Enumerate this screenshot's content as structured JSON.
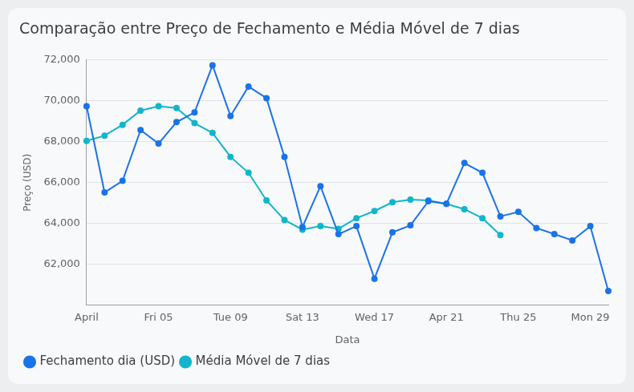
{
  "chart_data": {
    "type": "line",
    "title": "Comparação entre Preço de Fechamento e Média Móvel de 7 dias",
    "x_label": "Data",
    "y_label": "Preço (USD)",
    "categories": [
      "April",
      null,
      null,
      null,
      "Fri 05",
      null,
      null,
      null,
      "Tue 09",
      null,
      null,
      null,
      "Sat 13",
      null,
      null,
      null,
      "Wed 17",
      null,
      null,
      null,
      "Apr 21",
      null,
      null,
      null,
      "Thu 25",
      null,
      null,
      null,
      "Mon 29",
      null
    ],
    "series": [
      {
        "name": "Fechamento dia (USD)",
        "color": "#1a73e8",
        "marker": "circle",
        "line_style": "solid",
        "values": [
          69740,
          65520,
          66090,
          68570,
          67910,
          68960,
          69430,
          71740,
          69260,
          70700,
          70130,
          67260,
          63830,
          65830,
          63480,
          63870,
          61300,
          63570,
          63910,
          65090,
          64960,
          66960,
          66480,
          64350,
          64570,
          63780,
          63480,
          63170,
          63870,
          60700
        ]
      },
      {
        "name": "Média Móvel de 7 dias",
        "color": "#12b5cb",
        "marker": "circle",
        "line_style": "solid",
        "values": [
          68040,
          68300,
          68830,
          69520,
          69740,
          69650,
          68910,
          68430,
          67260,
          66480,
          65130,
          64170,
          63700,
          63870,
          63740,
          64260,
          64610,
          65040,
          65170,
          65130,
          64960,
          64700,
          64260,
          63430,
          null,
          null,
          null,
          null,
          null,
          null
        ]
      }
    ],
    "ylim": [
      60000,
      72000
    ],
    "yticks": [
      {
        "value": 62000,
        "label": "62,000"
      },
      {
        "value": 64000,
        "label": "64,000"
      },
      {
        "value": 66000,
        "label": "66,000"
      },
      {
        "value": 68000,
        "label": "68,000"
      },
      {
        "value": 70000,
        "label": "70,000"
      },
      {
        "value": 72000,
        "label": "72,000"
      }
    ],
    "grid": "y",
    "legend": "bottom"
  }
}
